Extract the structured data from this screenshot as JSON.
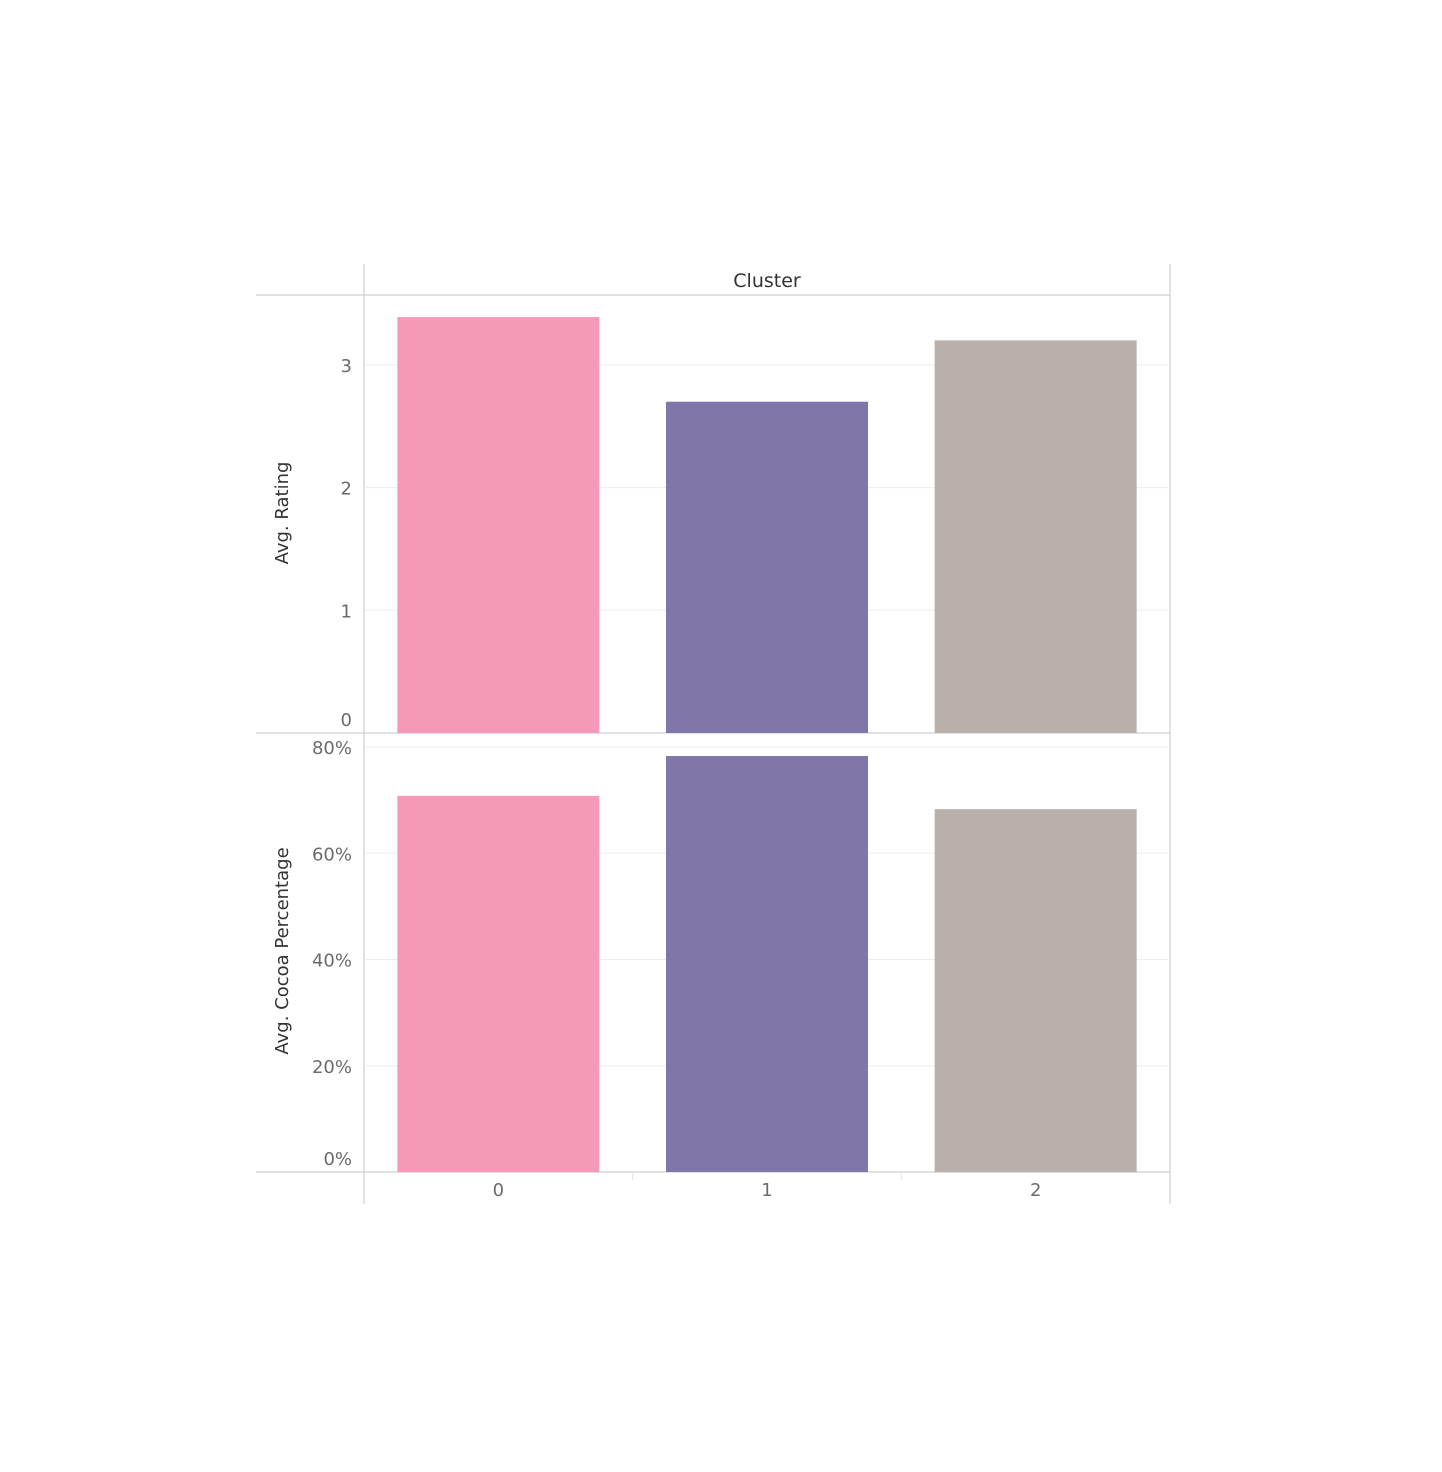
{
  "chart_data": {
    "type": "bar",
    "column_header": "Cluster",
    "categories": [
      "0",
      "1",
      "2"
    ],
    "colors": [
      "#f49ab7",
      "#8176a9",
      "#bab0ab"
    ],
    "panels": [
      {
        "ylabel": "Avg. Rating",
        "ylim": [
          0,
          3.4
        ],
        "ticks": [
          0,
          1,
          2,
          3
        ],
        "tick_labels": [
          "0",
          "1",
          "2",
          "3"
        ],
        "values": [
          3.39,
          2.7,
          3.2
        ]
      },
      {
        "ylabel": "Avg. Cocoa Percentage",
        "ylim": [
          0,
          0.8
        ],
        "ticks": [
          0,
          0.2,
          0.4,
          0.6,
          0.8
        ],
        "tick_labels": [
          "0%",
          "20%",
          "40%",
          "60%",
          "80%"
        ],
        "values": [
          0.708,
          0.783,
          0.683
        ]
      }
    ],
    "grid": true,
    "legend": "none"
  }
}
